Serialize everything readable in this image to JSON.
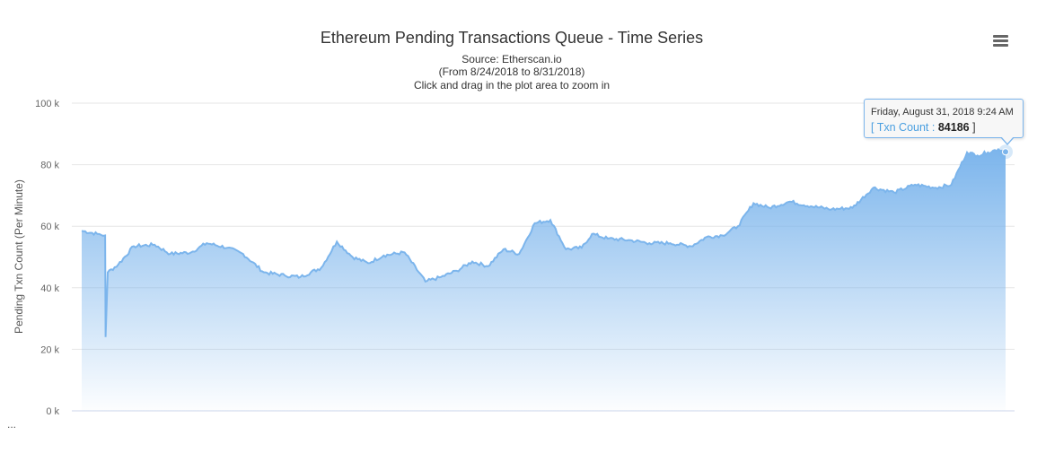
{
  "chart_data": {
    "type": "area",
    "title": "Ethereum Pending Transactions Queue - Time Series",
    "subtitle_lines": [
      "Source: Etherscan.io",
      "(From 8/24/2018 to 8/31/2018)",
      "Click and drag in the plot area to zoom in"
    ],
    "ylabel": "Pending Txn Count (Per Minute)",
    "xlabel": "",
    "ylim": [
      0,
      100000
    ],
    "yticks": [
      "0 k",
      "20 k",
      "40 k",
      "60 k",
      "80 k",
      "100 k"
    ],
    "yticks_values": [
      0,
      20000,
      40000,
      60000,
      80000,
      100000
    ],
    "grid": true,
    "legend": "none",
    "x_range": [
      "2018-08-24",
      "2018-08-31 09:24"
    ],
    "series": [
      {
        "name": "Txn Count",
        "color": "#7cb5ec",
        "x": [
          "2018-08-24 00:00",
          "2018-08-24 03:00",
          "2018-08-24 04:30",
          "2018-08-24 04:35",
          "2018-08-24 05:00",
          "2018-08-24 07:00",
          "2018-08-24 10:00",
          "2018-08-24 14:00",
          "2018-08-24 17:00",
          "2018-08-24 21:00",
          "2018-08-25 00:00",
          "2018-08-25 04:00",
          "2018-08-25 07:00",
          "2018-08-25 11:00",
          "2018-08-25 15:00",
          "2018-08-25 18:00",
          "2018-08-25 22:00",
          "2018-08-26 01:00",
          "2018-08-26 04:00",
          "2018-08-26 07:00",
          "2018-08-26 10:00",
          "2018-08-26 14:00",
          "2018-08-26 18:00",
          "2018-08-26 21:00",
          "2018-08-27 00:00",
          "2018-08-27 03:00",
          "2018-08-27 06:00",
          "2018-08-27 09:00",
          "2018-08-27 12:00",
          "2018-08-27 15:00",
          "2018-08-27 18:00",
          "2018-08-27 21:00",
          "2018-08-28 00:00",
          "2018-08-28 02:00",
          "2018-08-28 05:00",
          "2018-08-28 09:00",
          "2018-08-28 13:00",
          "2018-08-28 17:00",
          "2018-08-28 21:00",
          "2018-08-29 00:00",
          "2018-08-29 03:00",
          "2018-08-29 06:00",
          "2018-08-29 09:00",
          "2018-08-29 12:00",
          "2018-08-29 16:00",
          "2018-08-29 20:00",
          "2018-08-30 00:00",
          "2018-08-30 04:00",
          "2018-08-30 08:00",
          "2018-08-30 12:00",
          "2018-08-30 16:00",
          "2018-08-30 20:00",
          "2018-08-30 23:00",
          "2018-08-31 02:00",
          "2018-08-31 04:00",
          "2018-08-31 06:00",
          "2018-08-31 08:00",
          "2018-08-31 09:24"
        ],
        "values": [
          58500,
          57500,
          57000,
          24000,
          45000,
          47500,
          53500,
          54000,
          51000,
          51500,
          54500,
          53000,
          51000,
          45000,
          44000,
          43500,
          46500,
          55000,
          50000,
          48000,
          50500,
          51500,
          42000,
          43500,
          45500,
          48500,
          47000,
          52500,
          51000,
          61000,
          62000,
          52500,
          53000,
          57500,
          56000,
          55500,
          54500,
          54500,
          53500,
          56500,
          57000,
          60000,
          67500,
          66000,
          68000,
          66500,
          65500,
          66000,
          72500,
          71000,
          73500,
          72500,
          73500,
          84000,
          83000,
          84000,
          85000,
          84186
        ]
      }
    ],
    "tooltip": {
      "date": "Friday, August 31, 2018 9:24 AM",
      "bracket_open": "[",
      "series_label": "Txn Count :",
      "value": "84186",
      "bracket_close": "]"
    }
  },
  "menu_icon": "hamburger-menu-icon",
  "overflow_text": "..."
}
